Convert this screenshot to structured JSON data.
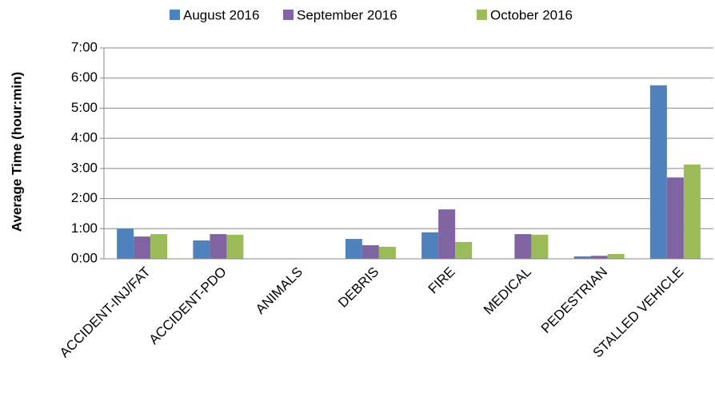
{
  "chart_data": {
    "type": "bar",
    "y_label": "Average Time (hour:min)",
    "categories": [
      "ACCIDENT-INJ/FAT",
      "ACCIDENT-PDO",
      "ANIMALS",
      "DEBRIS",
      "FIRE",
      "MEDICAL",
      "PEDESTRIAN",
      "STALLED VEHICLE"
    ],
    "series": [
      {
        "name": "August 2016",
        "color": "#4f81bd",
        "values": [
          1.0,
          0.61,
          0,
          0.66,
          0.88,
          0,
          0.08,
          5.76
        ]
      },
      {
        "name": "September 2016",
        "color": "#8064a2",
        "values": [
          0.74,
          0.82,
          0,
          0.45,
          1.64,
          0.82,
          0.1,
          2.7
        ]
      },
      {
        "name": "October 2016",
        "color": "#9bbb59",
        "values": [
          0.82,
          0.8,
          0,
          0.4,
          0.56,
          0.8,
          0.16,
          3.13
        ]
      }
    ],
    "ylim": [
      0,
      7
    ],
    "yticks": [
      {
        "value": 0,
        "label": "0:00"
      },
      {
        "value": 1,
        "label": "1:00"
      },
      {
        "value": 2,
        "label": "2:00"
      },
      {
        "value": 3,
        "label": "3:00"
      },
      {
        "value": 4,
        "label": "4:00"
      },
      {
        "value": 5,
        "label": "5:00"
      },
      {
        "value": 6,
        "label": "6:00"
      },
      {
        "value": 7,
        "label": "7:00"
      }
    ],
    "grid": true,
    "legend": "top"
  }
}
